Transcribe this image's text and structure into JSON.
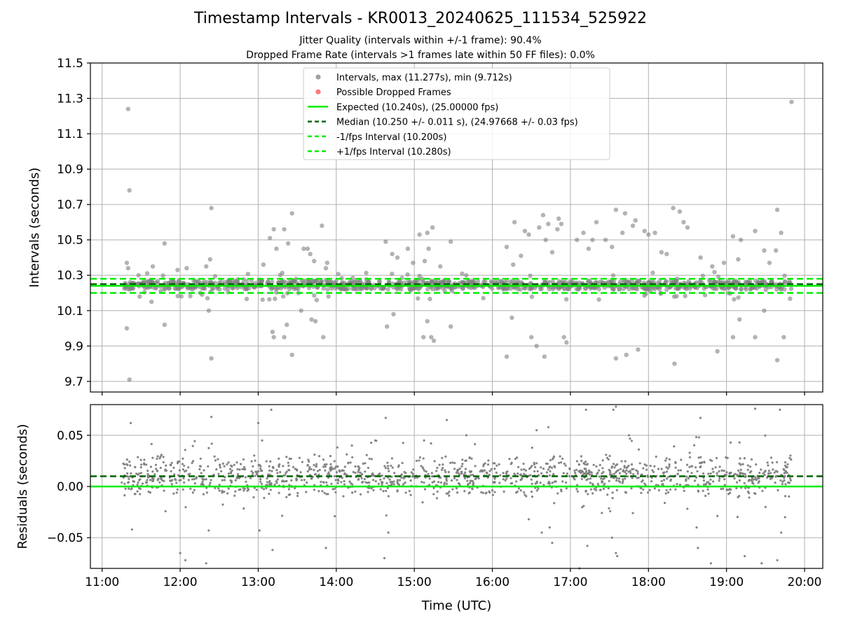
{
  "title": "Timestamp Intervals - KR0013_20240625_111534_525922",
  "subtitle_jitter": "Jitter Quality (intervals within +/-1 frame): 90.4%",
  "subtitle_dropped": "Dropped Frame Rate (intervals >1 frames late within 50 FF files): 0.0%",
  "colors": {
    "points": "#808080",
    "dropped": "#ff4d4d",
    "expected": "#00ee00",
    "median": "#006400",
    "interval_lines": "#00ee00",
    "grid": "#b0b0b0"
  },
  "chart_data": [
    {
      "type": "scatter",
      "ylabel": "Intervals (seconds)",
      "xlim": [
        "10:51",
        "20:14"
      ],
      "ylim": [
        9.64,
        11.5
      ],
      "yticks": [
        9.7,
        9.9,
        10.1,
        10.3,
        10.5,
        10.7,
        10.9,
        11.1,
        11.3,
        11.5
      ],
      "ytick_labels": [
        "9.7",
        "9.9",
        "10.1",
        "10.3",
        "10.5",
        "10.7",
        "10.9",
        "11.1",
        "11.3",
        "11.5"
      ],
      "xticks": [
        "11:00",
        "12:00",
        "13:00",
        "14:00",
        "15:00",
        "16:00",
        "17:00",
        "18:00",
        "19:00",
        "20:00"
      ],
      "grid": true,
      "legend_position": "top-center",
      "legend": [
        {
          "label": "Intervals, max (11.277s), min (9.712s)",
          "kind": "marker",
          "color": "#808080"
        },
        {
          "label": "Possible Dropped Frames",
          "kind": "marker",
          "color": "#ff4d4d"
        },
        {
          "label": "Expected (10.240s), (25.00000 fps)",
          "kind": "solid",
          "color": "#00ee00"
        },
        {
          "label": "Median (10.250 +/- 0.011 s), (24.97668 +/- 0.03 fps)",
          "kind": "dashed",
          "color": "#006400"
        },
        {
          "label": "-1/fps Interval (10.200s)",
          "kind": "dashed",
          "color": "#00ee00"
        },
        {
          "label": "+1/fps Interval (10.280s)",
          "kind": "dashed",
          "color": "#00ee00"
        }
      ],
      "reference_lines": {
        "expected": 10.24,
        "median": 10.25,
        "minus_1fps": 10.2,
        "plus_1fps": 10.28
      },
      "time_range": [
        "11:15",
        "19:50"
      ],
      "intervals_max": 11.277,
      "intervals_min": 9.712,
      "dense_band": [
        10.22,
        10.27
      ],
      "notable_points": [
        {
          "x": "11:20",
          "y": 11.24
        },
        {
          "x": "11:21",
          "y": 10.78
        },
        {
          "x": "11:19",
          "y": 10.0
        },
        {
          "x": "11:21",
          "y": 9.71
        },
        {
          "x": "11:19",
          "y": 10.37
        },
        {
          "x": "11:20",
          "y": 10.34
        },
        {
          "x": "11:48",
          "y": 10.48
        },
        {
          "x": "11:48",
          "y": 10.02
        },
        {
          "x": "11:28",
          "y": 10.3
        },
        {
          "x": "11:39",
          "y": 10.35
        },
        {
          "x": "11:38",
          "y": 10.15
        },
        {
          "x": "11:58",
          "y": 10.33
        },
        {
          "x": "12:05",
          "y": 10.34
        },
        {
          "x": "12:20",
          "y": 10.35
        },
        {
          "x": "12:23",
          "y": 10.39
        },
        {
          "x": "12:24",
          "y": 10.68
        },
        {
          "x": "12:24",
          "y": 9.83
        },
        {
          "x": "12:22",
          "y": 10.1
        },
        {
          "x": "12:21",
          "y": 10.17
        },
        {
          "x": "13:04",
          "y": 10.36
        },
        {
          "x": "13:09",
          "y": 10.51
        },
        {
          "x": "13:12",
          "y": 10.56
        },
        {
          "x": "13:11",
          "y": 9.98
        },
        {
          "x": "13:12",
          "y": 9.95
        },
        {
          "x": "13:14",
          "y": 10.45
        },
        {
          "x": "13:20",
          "y": 10.56
        },
        {
          "x": "13:23",
          "y": 10.48
        },
        {
          "x": "13:26",
          "y": 10.65
        },
        {
          "x": "13:26",
          "y": 9.85
        },
        {
          "x": "13:22",
          "y": 10.02
        },
        {
          "x": "13:20",
          "y": 9.95
        },
        {
          "x": "13:29",
          "y": 10.28
        },
        {
          "x": "13:31",
          "y": 10.2
        },
        {
          "x": "13:35",
          "y": 10.45
        },
        {
          "x": "13:33",
          "y": 10.1
        },
        {
          "x": "13:38",
          "y": 10.45
        },
        {
          "x": "13:40",
          "y": 10.42
        },
        {
          "x": "13:41",
          "y": 10.05
        },
        {
          "x": "13:43",
          "y": 10.38
        },
        {
          "x": "13:45",
          "y": 10.16
        },
        {
          "x": "13:44",
          "y": 10.04
        },
        {
          "x": "13:49",
          "y": 10.58
        },
        {
          "x": "13:50",
          "y": 9.95
        },
        {
          "x": "13:52",
          "y": 10.34
        },
        {
          "x": "13:53",
          "y": 10.37
        },
        {
          "x": "13:54",
          "y": 10.18
        },
        {
          "x": "14:38",
          "y": 10.49
        },
        {
          "x": "14:39",
          "y": 10.01
        },
        {
          "x": "14:43",
          "y": 10.42
        },
        {
          "x": "14:44",
          "y": 10.08
        },
        {
          "x": "14:47",
          "y": 10.4
        },
        {
          "x": "14:55",
          "y": 10.45
        },
        {
          "x": "14:59",
          "y": 10.37
        },
        {
          "x": "15:04",
          "y": 10.53
        },
        {
          "x": "15:10",
          "y": 10.54
        },
        {
          "x": "15:11",
          "y": 10.45
        },
        {
          "x": "15:14",
          "y": 10.57
        },
        {
          "x": "15:08",
          "y": 10.38
        },
        {
          "x": "15:10",
          "y": 10.04
        },
        {
          "x": "15:13",
          "y": 9.95
        },
        {
          "x": "15:15",
          "y": 9.93
        },
        {
          "x": "15:20",
          "y": 10.35
        },
        {
          "x": "15:28",
          "y": 10.49
        },
        {
          "x": "15:28",
          "y": 10.01
        },
        {
          "x": "15:07",
          "y": 9.95
        },
        {
          "x": "16:11",
          "y": 10.46
        },
        {
          "x": "16:11",
          "y": 9.84
        },
        {
          "x": "16:15",
          "y": 10.06
        },
        {
          "x": "16:16",
          "y": 10.36
        },
        {
          "x": "16:17",
          "y": 10.6
        },
        {
          "x": "16:22",
          "y": 10.41
        },
        {
          "x": "16:25",
          "y": 10.55
        },
        {
          "x": "16:28",
          "y": 10.53
        },
        {
          "x": "16:30",
          "y": 9.95
        },
        {
          "x": "16:36",
          "y": 10.57
        },
        {
          "x": "16:39",
          "y": 10.64
        },
        {
          "x": "16:41",
          "y": 10.5
        },
        {
          "x": "16:43",
          "y": 10.59
        },
        {
          "x": "16:46",
          "y": 10.43
        },
        {
          "x": "16:50",
          "y": 10.56
        },
        {
          "x": "16:51",
          "y": 10.62
        },
        {
          "x": "16:53",
          "y": 10.59
        },
        {
          "x": "16:55",
          "y": 9.95
        },
        {
          "x": "16:57",
          "y": 9.92
        },
        {
          "x": "16:40",
          "y": 9.84
        },
        {
          "x": "16:34",
          "y": 9.9
        },
        {
          "x": "17:05",
          "y": 10.5
        },
        {
          "x": "17:10",
          "y": 10.54
        },
        {
          "x": "17:14",
          "y": 10.45
        },
        {
          "x": "17:17",
          "y": 10.5
        },
        {
          "x": "17:20",
          "y": 10.6
        },
        {
          "x": "17:27",
          "y": 10.5
        },
        {
          "x": "17:32",
          "y": 10.46
        },
        {
          "x": "17:35",
          "y": 10.67
        },
        {
          "x": "17:35",
          "y": 9.83
        },
        {
          "x": "17:40",
          "y": 10.54
        },
        {
          "x": "17:42",
          "y": 10.65
        },
        {
          "x": "17:43",
          "y": 9.85
        },
        {
          "x": "17:48",
          "y": 10.58
        },
        {
          "x": "17:50",
          "y": 10.61
        },
        {
          "x": "17:52",
          "y": 9.88
        },
        {
          "x": "17:57",
          "y": 10.55
        },
        {
          "x": "18:00",
          "y": 10.53
        },
        {
          "x": "18:05",
          "y": 10.54
        },
        {
          "x": "18:10",
          "y": 10.43
        },
        {
          "x": "18:14",
          "y": 10.42
        },
        {
          "x": "18:19",
          "y": 10.68
        },
        {
          "x": "18:20",
          "y": 9.8
        },
        {
          "x": "18:24",
          "y": 10.66
        },
        {
          "x": "18:27",
          "y": 10.6
        },
        {
          "x": "18:30",
          "y": 10.57
        },
        {
          "x": "18:40",
          "y": 10.4
        },
        {
          "x": "18:49",
          "y": 10.35
        },
        {
          "x": "18:53",
          "y": 9.87
        },
        {
          "x": "18:58",
          "y": 10.37
        },
        {
          "x": "19:05",
          "y": 10.52
        },
        {
          "x": "19:09",
          "y": 10.39
        },
        {
          "x": "19:11",
          "y": 10.5
        },
        {
          "x": "19:22",
          "y": 10.55
        },
        {
          "x": "19:29",
          "y": 10.44
        },
        {
          "x": "19:33",
          "y": 10.37
        },
        {
          "x": "19:38",
          "y": 10.44
        },
        {
          "x": "19:39",
          "y": 10.67
        },
        {
          "x": "19:42",
          "y": 10.54
        },
        {
          "x": "19:44",
          "y": 9.95
        },
        {
          "x": "19:50",
          "y": 11.28
        },
        {
          "x": "19:39",
          "y": 9.82
        },
        {
          "x": "19:29",
          "y": 10.1
        },
        {
          "x": "19:05",
          "y": 9.95
        },
        {
          "x": "19:22",
          "y": 9.95
        },
        {
          "x": "19:10",
          "y": 10.05
        }
      ]
    },
    {
      "type": "scatter",
      "xlabel": "Time (UTC)",
      "ylabel": "Residuals (seconds)",
      "xlim": [
        "10:51",
        "20:14"
      ],
      "ylim": [
        -0.08,
        0.08
      ],
      "yticks": [
        -0.05,
        0.0,
        0.05
      ],
      "ytick_labels": [
        "−0.05",
        "0.00",
        "0.05"
      ],
      "xticks": [
        "11:00",
        "12:00",
        "13:00",
        "14:00",
        "15:00",
        "16:00",
        "17:00",
        "18:00",
        "19:00",
        "20:00"
      ],
      "grid": true,
      "reference_lines": {
        "expected": 0.0,
        "median": 0.01
      },
      "time_range": [
        "11:15",
        "19:50"
      ],
      "dense_band": [
        -0.012,
        0.032
      ],
      "notable_points": [
        {
          "x": "11:22",
          "y": 0.062
        },
        {
          "x": "11:23",
          "y": -0.042
        },
        {
          "x": "12:00",
          "y": -0.065
        },
        {
          "x": "12:04",
          "y": -0.072
        },
        {
          "x": "12:20",
          "y": -0.075
        },
        {
          "x": "12:24",
          "y": 0.068
        },
        {
          "x": "12:22",
          "y": -0.043
        },
        {
          "x": "13:00",
          "y": 0.062
        },
        {
          "x": "13:01",
          "y": -0.043
        },
        {
          "x": "13:03",
          "y": 0.045
        },
        {
          "x": "13:10",
          "y": 0.075
        },
        {
          "x": "13:11",
          "y": -0.062
        },
        {
          "x": "13:52",
          "y": -0.06
        },
        {
          "x": "14:30",
          "y": 0.045
        },
        {
          "x": "14:37",
          "y": -0.07
        },
        {
          "x": "14:38",
          "y": 0.067
        },
        {
          "x": "14:40",
          "y": -0.045
        },
        {
          "x": "15:25",
          "y": 0.065
        },
        {
          "x": "15:40",
          "y": 0.05
        },
        {
          "x": "16:28",
          "y": -0.032
        },
        {
          "x": "16:34",
          "y": 0.055
        },
        {
          "x": "16:38",
          "y": -0.045
        },
        {
          "x": "16:43",
          "y": 0.058
        },
        {
          "x": "16:44",
          "y": -0.04
        },
        {
          "x": "16:46",
          "y": -0.055
        },
        {
          "x": "17:07",
          "y": -0.08
        },
        {
          "x": "17:12",
          "y": 0.075
        },
        {
          "x": "17:13",
          "y": -0.058
        },
        {
          "x": "17:32",
          "y": -0.05
        },
        {
          "x": "17:33",
          "y": 0.075
        },
        {
          "x": "17:35",
          "y": 0.078
        },
        {
          "x": "17:35",
          "y": -0.065
        },
        {
          "x": "17:36",
          "y": -0.068
        },
        {
          "x": "17:45",
          "y": 0.05
        },
        {
          "x": "18:37",
          "y": -0.04
        },
        {
          "x": "18:38",
          "y": -0.06
        },
        {
          "x": "18:40",
          "y": 0.067
        },
        {
          "x": "18:48",
          "y": -0.075
        },
        {
          "x": "19:10",
          "y": 0.043
        },
        {
          "x": "19:14",
          "y": -0.068
        },
        {
          "x": "19:22",
          "y": 0.076
        },
        {
          "x": "19:27",
          "y": -0.075
        },
        {
          "x": "19:30",
          "y": -0.02
        },
        {
          "x": "19:39",
          "y": -0.072
        },
        {
          "x": "19:41",
          "y": 0.075
        },
        {
          "x": "19:42",
          "y": -0.045
        },
        {
          "x": "19:45",
          "y": -0.03
        }
      ]
    }
  ]
}
